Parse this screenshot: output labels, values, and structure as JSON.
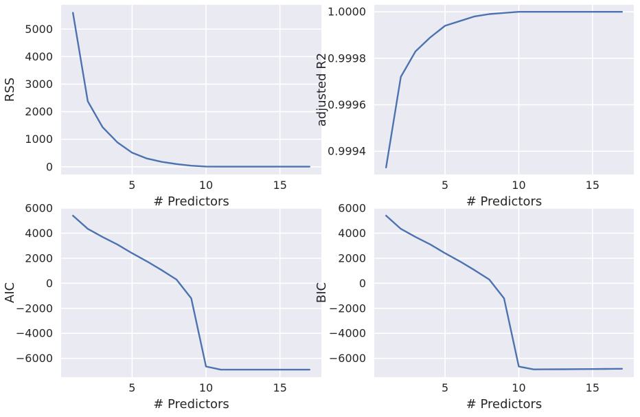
{
  "figure": {
    "background": "#ffffff",
    "axes_background": "#eaeaf2",
    "grid_color": "#ffffff",
    "line_color": "#4c72b0"
  },
  "chart_data": [
    {
      "type": "line",
      "xlabel": "# Predictors",
      "ylabel": "RSS",
      "xlim": [
        0.2,
        17.8
      ],
      "ylim": [
        -280,
        5880
      ],
      "xticks": [
        5,
        10,
        15
      ],
      "xtick_labels": [
        "5",
        "10",
        "15"
      ],
      "yticks": [
        0,
        1000,
        2000,
        3000,
        4000,
        5000
      ],
      "ytick_labels": [
        "0",
        "1000",
        "2000",
        "3000",
        "4000",
        "5000"
      ],
      "grid": true,
      "series": [
        {
          "x": [
            1,
            2,
            3,
            4,
            5,
            6,
            7,
            8,
            9,
            10,
            11,
            12,
            13,
            14,
            15,
            16,
            17
          ],
          "y": [
            5590,
            2380,
            1440,
            890,
            510,
            300,
            180,
            100,
            40,
            10,
            5,
            5,
            5,
            5,
            5,
            5,
            5
          ]
        }
      ]
    },
    {
      "type": "line",
      "xlabel": "# Predictors",
      "ylabel": "adjusted R2",
      "xlim": [
        0.2,
        17.8
      ],
      "ylim": [
        0.9993,
        1.00003
      ],
      "xticks": [
        5,
        10,
        15
      ],
      "xtick_labels": [
        "5",
        "10",
        "15"
      ],
      "yticks": [
        0.9994,
        0.9996,
        0.9998,
        1.0
      ],
      "ytick_labels": [
        "0.9994",
        "0.9996",
        "0.9998",
        "1.0000"
      ],
      "grid": true,
      "series": [
        {
          "x": [
            1,
            2,
            3,
            4,
            5,
            6,
            7,
            8,
            9,
            10,
            11,
            12,
            13,
            14,
            15,
            16,
            17
          ],
          "y": [
            0.99933,
            0.99972,
            0.99983,
            0.99989,
            0.99994,
            0.99996,
            0.99998,
            0.99999,
            0.999995,
            1.0,
            1.0,
            1.0,
            1.0,
            1.0,
            1.0,
            1.0,
            1.0
          ]
        }
      ]
    },
    {
      "type": "line",
      "xlabel": "# Predictors",
      "ylabel": "AIC",
      "xlim": [
        0.2,
        17.8
      ],
      "ylim": [
        -7500,
        6000
      ],
      "xticks": [
        5,
        10,
        15
      ],
      "xtick_labels": [
        "5",
        "10",
        "15"
      ],
      "yticks": [
        -6000,
        -4000,
        -2000,
        0,
        2000,
        4000,
        6000
      ],
      "ytick_labels": [
        "−6000",
        "−4000",
        "−2000",
        "0",
        "2000",
        "4000",
        "6000"
      ],
      "grid": true,
      "series": [
        {
          "x": [
            1,
            2,
            3,
            4,
            5,
            6,
            7,
            8,
            9,
            10,
            11,
            12,
            13,
            14,
            15,
            16,
            17
          ],
          "y": [
            5400,
            4350,
            3700,
            3100,
            2400,
            1750,
            1050,
            300,
            -1200,
            -6650,
            -6900,
            -6900,
            -6900,
            -6900,
            -6900,
            -6900,
            -6900
          ]
        }
      ]
    },
    {
      "type": "line",
      "xlabel": "# Predictors",
      "ylabel": "BIC",
      "xlim": [
        0.2,
        17.8
      ],
      "ylim": [
        -7500,
        6000
      ],
      "xticks": [
        5,
        10,
        15
      ],
      "xtick_labels": [
        "5",
        "10",
        "15"
      ],
      "yticks": [
        -6000,
        -4000,
        -2000,
        0,
        2000,
        4000,
        6000
      ],
      "ytick_labels": [
        "−6000",
        "−4000",
        "−2000",
        "0",
        "2000",
        "4000",
        "6000"
      ],
      "grid": true,
      "series": [
        {
          "x": [
            1,
            2,
            3,
            4,
            5,
            6,
            7,
            8,
            9,
            10,
            11,
            12,
            13,
            14,
            15,
            16,
            17
          ],
          "y": [
            5400,
            4350,
            3700,
            3100,
            2400,
            1750,
            1050,
            300,
            -1200,
            -6650,
            -6880,
            -6875,
            -6870,
            -6860,
            -6850,
            -6840,
            -6830
          ]
        }
      ]
    }
  ]
}
